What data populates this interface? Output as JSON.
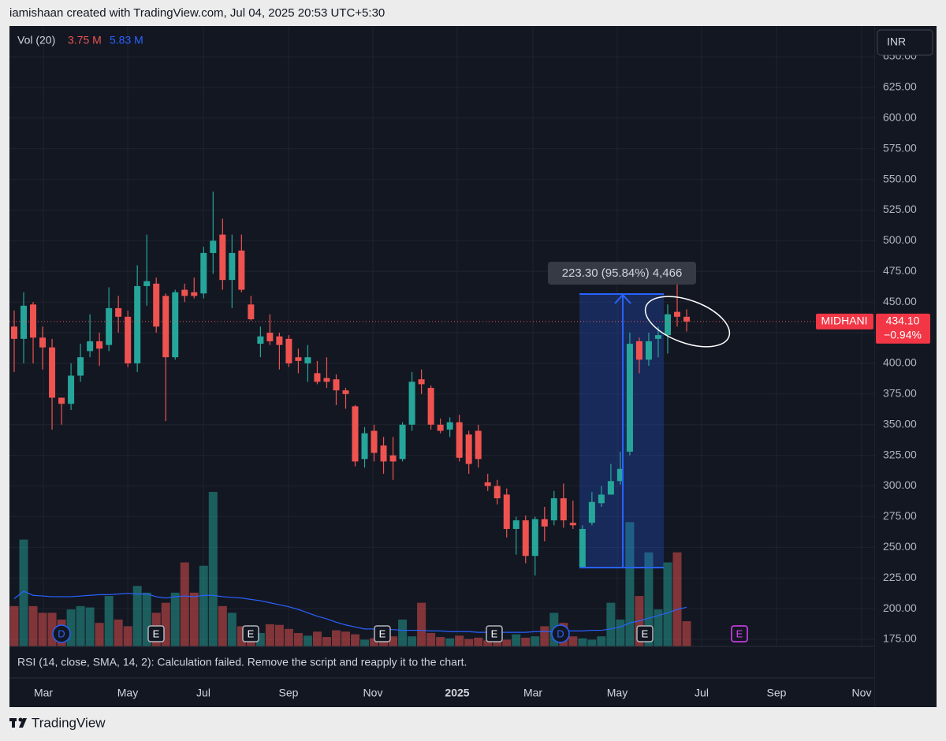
{
  "chart_data": {
    "type": "candlestick",
    "header": "iamishaan created with TradingView.com, Jul 04, 2025 20:53 UTC+5:30",
    "legend": {
      "title": "Vol (20)",
      "volume_label": "3.75 M",
      "ma_label": "5.83 M"
    },
    "currency": "INR",
    "symbol": "MIDHANI",
    "last_price": "434.10",
    "change": "−0.94%",
    "measure_label": "223.30 (95.84%) 4,466",
    "rsi_text": "RSI (14, close, SMA, 14, 2): Calculation failed. Remove the script and reapply it to the chart.",
    "time_labels": [
      "Mar",
      "May",
      "Jul",
      "Sep",
      "Nov",
      "2025",
      "Mar",
      "May",
      "Jul",
      "Sep",
      "Nov"
    ],
    "events": [
      "D",
      "E",
      "E",
      "E",
      "E",
      "D",
      "E",
      "E"
    ],
    "footer": "TradingView",
    "up_color": "#26a69a",
    "down_color": "#ef5350",
    "ma_color": "#2962ff",
    "ylim": [
      175,
      650
    ],
    "yticks": [
      {
        "value": 175,
        "label": "175.00"
      },
      {
        "value": 200,
        "label": "200.00"
      },
      {
        "value": 225,
        "label": "225.00"
      },
      {
        "value": 250,
        "label": "250.00"
      },
      {
        "value": 275,
        "label": "275.00"
      },
      {
        "value": 300,
        "label": "300.00"
      },
      {
        "value": 325,
        "label": "325.00"
      },
      {
        "value": 350,
        "label": "350.00"
      },
      {
        "value": 375,
        "label": "375.00"
      },
      {
        "value": 400,
        "label": "400.00"
      },
      {
        "value": 425,
        "label": "425.00"
      },
      {
        "value": 450,
        "label": "450.00"
      },
      {
        "value": 475,
        "label": "475.00"
      },
      {
        "value": 500,
        "label": "500.00"
      },
      {
        "value": 525,
        "label": "525.00"
      },
      {
        "value": 550,
        "label": "550.00"
      },
      {
        "value": 575,
        "label": "575.00"
      },
      {
        "value": 600,
        "label": "600.00"
      },
      {
        "value": 625,
        "label": "625.00"
      },
      {
        "value": 650,
        "label": "650.00"
      }
    ],
    "open": [
      430,
      420,
      448,
      421,
      413,
      372,
      367,
      390,
      410,
      418,
      415,
      445,
      438,
      400,
      463,
      465,
      455,
      405,
      460,
      458,
      457,
      490,
      505,
      468,
      492,
      448,
      416,
      425,
      422,
      420,
      405,
      400,
      392,
      388,
      387,
      378,
      365,
      322,
      345,
      333,
      325,
      322,
      350,
      387,
      380,
      350,
      346,
      352,
      342,
      345,
      303,
      300,
      293,
      265,
      272,
      243,
      273,
      272,
      290,
      270,
      234,
      270,
      286,
      293,
      304,
      328,
      418,
      403,
      420,
      423,
      442,
      438
    ],
    "high": [
      443,
      458,
      450,
      430,
      420,
      372,
      400,
      416,
      440,
      425,
      462,
      455,
      443,
      480,
      505,
      470,
      457,
      460,
      465,
      470,
      495,
      540,
      518,
      505,
      505,
      455,
      430,
      440,
      425,
      423,
      412,
      415,
      402,
      405,
      391,
      380,
      366,
      348,
      350,
      340,
      340,
      352,
      393,
      395,
      382,
      355,
      356,
      358,
      345,
      350,
      310,
      305,
      298,
      275,
      276,
      275,
      283,
      296,
      302,
      288,
      268,
      295,
      300,
      318,
      328,
      425,
      421,
      425,
      430,
      448,
      467,
      444
    ],
    "low": [
      393,
      400,
      400,
      395,
      346,
      350,
      362,
      385,
      405,
      398,
      410,
      425,
      397,
      393,
      447,
      425,
      353,
      403,
      450,
      453,
      453,
      473,
      460,
      445,
      458,
      435,
      405,
      415,
      395,
      397,
      392,
      385,
      383,
      380,
      366,
      363,
      316,
      315,
      320,
      310,
      305,
      320,
      345,
      375,
      346,
      343,
      340,
      320,
      310,
      315,
      296,
      285,
      258,
      244,
      237,
      227,
      255,
      268,
      266,
      265,
      233,
      268,
      283,
      293,
      301,
      325,
      392,
      398,
      405,
      408,
      430,
      426
    ],
    "close": [
      420,
      447,
      421,
      413,
      372,
      367,
      390,
      405,
      418,
      412,
      445,
      438,
      400,
      463,
      467,
      430,
      405,
      458,
      455,
      455,
      490,
      500,
      468,
      490,
      460,
      436,
      422,
      418,
      415,
      400,
      402,
      405,
      385,
      385,
      378,
      375,
      320,
      343,
      327,
      320,
      320,
      350,
      385,
      383,
      350,
      345,
      352,
      323,
      318,
      322,
      300,
      290,
      265,
      272,
      243,
      273,
      267,
      290,
      272,
      268,
      265,
      287,
      293,
      304,
      314,
      416,
      403,
      418,
      423,
      440,
      438,
      434.1
    ],
    "volume": [
      6,
      15.9,
      6,
      5,
      5,
      4,
      5.5,
      6,
      5.8,
      3.5,
      7.5,
      4,
      3,
      9,
      8,
      5,
      6.5,
      8,
      12.5,
      8,
      12,
      23,
      6,
      5,
      3,
      2.5,
      2,
      3.3,
      3.2,
      2.6,
      2,
      1.6,
      2.2,
      1.4,
      2.4,
      2.2,
      1.8,
      1,
      1.2,
      0.8,
      1.5,
      4,
      1.5,
      6.5,
      2,
      1.4,
      1.2,
      1.6,
      1.1,
      1.3,
      0.9,
      0.8,
      1,
      1.8,
      1.3,
      1.5,
      3,
      5,
      3.5,
      1.5,
      1.2,
      1,
      1.5,
      6.5,
      4,
      18.5,
      7.5,
      14,
      5.5,
      12.5,
      14,
      3.75
    ],
    "volume_ma": [
      7.1,
      8.2,
      7.6,
      7.5,
      7.4,
      7.4,
      7.4,
      7.5,
      7.6,
      7.7,
      7.7,
      7.8,
      7.9,
      7.8,
      7.8,
      7.4,
      7.2,
      7.4,
      7.5,
      7.4,
      7.6,
      7.6,
      7.4,
      7.3,
      7.2,
      7,
      6.8,
      6.5,
      6.2,
      5.9,
      5.5,
      5,
      4.5,
      4.1,
      3.6,
      3.2,
      2.9,
      2.6,
      2.6,
      2.5,
      2.5,
      2.4,
      2.4,
      2.4,
      2.3,
      2.3,
      2.2,
      2.2,
      2.2,
      2.1,
      2.1,
      2.1,
      2.1,
      2.1,
      2.1,
      2.2,
      2.2,
      2.2,
      2.3,
      2.3,
      2.3,
      2.4,
      2.4,
      2.6,
      2.9,
      3.5,
      3.8,
      4.2,
      4.6,
      5.0,
      5.5,
      5.83
    ]
  }
}
